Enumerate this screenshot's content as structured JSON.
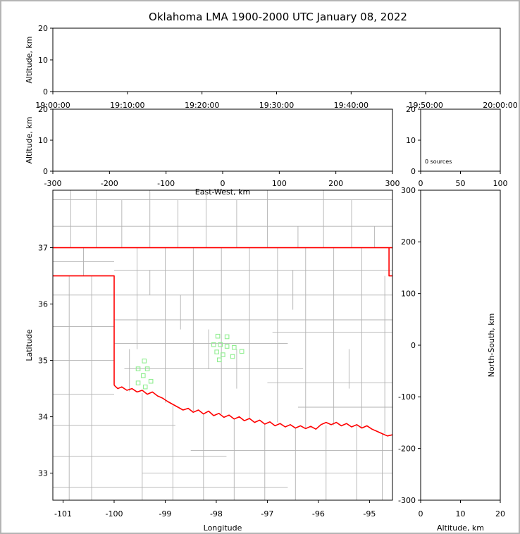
{
  "colors": {
    "axis": "#000000",
    "county": "#b2b2b2",
    "state_border": "#ff0000",
    "station": "#90EE90",
    "background": "#ffffff",
    "frame": "#b4b4b4"
  },
  "chart_data": {
    "title": "Oklahoma LMA 1900-2000 UTC January 08, 2022",
    "type": "lma-composite",
    "panels": [
      {
        "id": "time-altitude",
        "type": "scatter",
        "xlim": [
          0,
          3600
        ],
        "ylim": [
          0,
          20
        ],
        "xticks": [
          {
            "v": 0,
            "label": "19:00:00"
          },
          {
            "v": 600,
            "label": "19:10:00"
          },
          {
            "v": 1200,
            "label": "19:20:00"
          },
          {
            "v": 1800,
            "label": "19:30:00"
          },
          {
            "v": 2400,
            "label": "19:40:00"
          },
          {
            "v": 3000,
            "label": "19:50:00"
          },
          {
            "v": 3600,
            "label": "20:00:00"
          }
        ],
        "yticks": [
          {
            "v": 0,
            "label": "0"
          },
          {
            "v": 10,
            "label": "10"
          },
          {
            "v": 20,
            "label": "20"
          }
        ],
        "ylabel": "Altitude, km",
        "points": []
      },
      {
        "id": "ew-altitude",
        "type": "scatter",
        "xlim": [
          -300,
          300
        ],
        "ylim": [
          0,
          20
        ],
        "xticks": [
          {
            "v": -300,
            "label": "-300"
          },
          {
            "v": -200,
            "label": "-200"
          },
          {
            "v": -100,
            "label": "-100"
          },
          {
            "v": 0,
            "label": "0"
          },
          {
            "v": 100,
            "label": "100"
          },
          {
            "v": 200,
            "label": "200"
          },
          {
            "v": 300,
            "label": "300"
          }
        ],
        "yticks": [
          {
            "v": 0,
            "label": "0"
          },
          {
            "v": 10,
            "label": "10"
          },
          {
            "v": 20,
            "label": "20"
          }
        ],
        "xlabel": "East-West, km",
        "ylabel": "Altitude, km",
        "points": []
      },
      {
        "id": "altitude-histogram",
        "type": "line",
        "xlim": [
          0,
          100
        ],
        "ylim": [
          0,
          20
        ],
        "xticks": [
          {
            "v": 0,
            "label": "0"
          },
          {
            "v": 50,
            "label": "50"
          },
          {
            "v": 100,
            "label": "100"
          }
        ],
        "yticks": [
          {
            "v": 0,
            "label": "0"
          },
          {
            "v": 10,
            "label": "10"
          },
          {
            "v": 20,
            "label": "20"
          }
        ],
        "annotation": "0 sources",
        "points": []
      },
      {
        "id": "plan-view",
        "type": "scatter",
        "xlim": [
          -101.2,
          -94.55
        ],
        "ylim": [
          32.52,
          38.02
        ],
        "xticks": [
          {
            "v": -101,
            "label": "-101"
          },
          {
            "v": -100,
            "label": "-100"
          },
          {
            "v": -99,
            "label": "-99"
          },
          {
            "v": -98,
            "label": "-98"
          },
          {
            "v": -97,
            "label": "-97"
          },
          {
            "v": -96,
            "label": "-96"
          },
          {
            "v": -95,
            "label": "-95"
          }
        ],
        "yticks": [
          {
            "v": 33,
            "label": "33"
          },
          {
            "v": 34,
            "label": "34"
          },
          {
            "v": 35,
            "label": "35"
          },
          {
            "v": 36,
            "label": "36"
          },
          {
            "v": 37,
            "label": "37"
          }
        ],
        "xlabel": "Longitude",
        "ylabel": "Latitude",
        "map": {
          "state_border": [
            [
              [
                -101.2,
                37.0
              ],
              [
                -94.55,
                37.0
              ]
            ],
            [
              [
                -101.2,
                36.5
              ],
              [
                -100.0,
                36.5
              ],
              [
                -100.0,
                34.56
              ]
            ],
            [
              [
                -94.618,
                37.0
              ],
              [
                -94.618,
                36.5
              ],
              [
                -94.55,
                36.5
              ]
            ]
          ],
          "red_river": [
            [
              -100.0,
              34.56
            ],
            [
              -99.93,
              34.5
            ],
            [
              -99.85,
              34.53
            ],
            [
              -99.75,
              34.47
            ],
            [
              -99.65,
              34.5
            ],
            [
              -99.55,
              34.44
            ],
            [
              -99.45,
              34.47
            ],
            [
              -99.35,
              34.4
            ],
            [
              -99.25,
              34.44
            ],
            [
              -99.15,
              34.37
            ],
            [
              -99.05,
              34.33
            ],
            [
              -98.95,
              34.27
            ],
            [
              -98.85,
              34.22
            ],
            [
              -98.75,
              34.17
            ],
            [
              -98.65,
              34.12
            ],
            [
              -98.55,
              34.15
            ],
            [
              -98.45,
              34.08
            ],
            [
              -98.35,
              34.12
            ],
            [
              -98.25,
              34.05
            ],
            [
              -98.15,
              34.1
            ],
            [
              -98.05,
              34.02
            ],
            [
              -97.95,
              34.06
            ],
            [
              -97.85,
              33.99
            ],
            [
              -97.75,
              34.03
            ],
            [
              -97.65,
              33.96
            ],
            [
              -97.55,
              34.0
            ],
            [
              -97.45,
              33.93
            ],
            [
              -97.35,
              33.97
            ],
            [
              -97.25,
              33.9
            ],
            [
              -97.15,
              33.94
            ],
            [
              -97.05,
              33.87
            ],
            [
              -96.95,
              33.91
            ],
            [
              -96.85,
              33.84
            ],
            [
              -96.75,
              33.88
            ],
            [
              -96.65,
              33.82
            ],
            [
              -96.55,
              33.86
            ],
            [
              -96.45,
              33.8
            ],
            [
              -96.35,
              33.84
            ],
            [
              -96.25,
              33.79
            ],
            [
              -96.15,
              33.83
            ],
            [
              -96.05,
              33.78
            ],
            [
              -95.95,
              33.86
            ],
            [
              -95.85,
              33.9
            ],
            [
              -95.75,
              33.86
            ],
            [
              -95.65,
              33.9
            ],
            [
              -95.55,
              33.84
            ],
            [
              -95.45,
              33.88
            ],
            [
              -95.35,
              33.82
            ],
            [
              -95.25,
              33.86
            ],
            [
              -95.15,
              33.8
            ],
            [
              -95.05,
              33.84
            ],
            [
              -94.95,
              33.78
            ],
            [
              -94.85,
              33.74
            ],
            [
              -94.75,
              33.7
            ],
            [
              -94.65,
              33.66
            ],
            [
              -94.55,
              33.68
            ]
          ],
          "counties_v": [
            [
              -100.85,
              37.0,
              38.02
            ],
            [
              -100.35,
              37.0,
              38.02
            ],
            [
              -99.85,
              37.0,
              37.85
            ],
            [
              -99.3,
              37.0,
              38.02
            ],
            [
              -98.75,
              37.0,
              37.85
            ],
            [
              -98.2,
              37.0,
              38.02
            ],
            [
              -97.6,
              37.0,
              37.85
            ],
            [
              -97.0,
              37.0,
              38.02
            ],
            [
              -96.4,
              37.0,
              37.38
            ],
            [
              -95.9,
              37.0,
              38.02
            ],
            [
              -95.35,
              37.0,
              37.85
            ],
            [
              -94.9,
              37.0,
              37.38
            ],
            [
              -100.88,
              32.52,
              36.5
            ],
            [
              -100.44,
              32.52,
              36.5
            ],
            [
              -100.6,
              36.5,
              37.0
            ],
            [
              -99.55,
              35.2,
              37.0
            ],
            [
              -99.3,
              36.16,
              36.6
            ],
            [
              -99.7,
              34.45,
              35.2
            ],
            [
              -99.0,
              34.25,
              37.0
            ],
            [
              -98.7,
              35.55,
              36.16
            ],
            [
              -98.45,
              34.1,
              37.0
            ],
            [
              -98.15,
              34.85,
              35.55
            ],
            [
              -97.9,
              34.05,
              37.0
            ],
            [
              -97.6,
              34.5,
              35.2
            ],
            [
              -97.35,
              33.95,
              37.0
            ],
            [
              -96.8,
              33.9,
              37.0
            ],
            [
              -96.5,
              35.9,
              36.6
            ],
            [
              -96.25,
              33.8,
              37.0
            ],
            [
              -95.7,
              33.85,
              37.0
            ],
            [
              -95.4,
              34.5,
              35.2
            ],
            [
              -95.15,
              33.8,
              37.0
            ],
            [
              -94.7,
              33.7,
              36.5
            ],
            [
              -99.45,
              32.52,
              34.42
            ],
            [
              -98.85,
              32.52,
              34.2
            ],
            [
              -98.25,
              32.52,
              34.05
            ],
            [
              -97.65,
              32.52,
              33.95
            ],
            [
              -97.05,
              32.52,
              33.88
            ],
            [
              -96.45,
              32.52,
              33.8
            ],
            [
              -95.85,
              32.52,
              33.85
            ],
            [
              -95.25,
              32.52,
              33.85
            ],
            [
              -94.75,
              32.52,
              33.7
            ]
          ],
          "counties_h": [
            [
              37.85,
              -101.2,
              -94.55
            ],
            [
              37.38,
              -101.2,
              -94.55
            ],
            [
              36.75,
              -101.2,
              -100.0
            ],
            [
              36.16,
              -101.2,
              -100.0
            ],
            [
              35.6,
              -101.2,
              -100.0
            ],
            [
              35.0,
              -101.2,
              -100.0
            ],
            [
              34.4,
              -101.2,
              -100.0
            ],
            [
              33.85,
              -101.2,
              -98.8
            ],
            [
              33.3,
              -101.2,
              -97.8
            ],
            [
              32.75,
              -101.2,
              -96.6
            ],
            [
              36.6,
              -100.0,
              -94.55
            ],
            [
              36.16,
              -100.0,
              -94.55
            ],
            [
              35.72,
              -100.0,
              -94.55
            ],
            [
              35.3,
              -100.0,
              -96.6
            ],
            [
              34.85,
              -99.8,
              -96.3
            ],
            [
              35.5,
              -96.9,
              -94.55
            ],
            [
              34.6,
              -97.0,
              -94.55
            ],
            [
              34.17,
              -96.4,
              -94.55
            ],
            [
              33.4,
              -98.5,
              -94.55
            ],
            [
              33.0,
              -99.45,
              -94.55
            ]
          ],
          "stations": [
            [
              -99.41,
              34.99
            ],
            [
              -99.53,
              34.85
            ],
            [
              -99.35,
              34.85
            ],
            [
              -99.43,
              34.73
            ],
            [
              -99.28,
              34.63
            ],
            [
              -99.53,
              34.6
            ],
            [
              -99.39,
              34.53
            ],
            [
              -97.97,
              35.43
            ],
            [
              -97.79,
              35.42
            ],
            [
              -98.05,
              35.28
            ],
            [
              -97.92,
              35.28
            ],
            [
              -97.79,
              35.25
            ],
            [
              -97.65,
              35.23
            ],
            [
              -97.99,
              35.15
            ],
            [
              -97.87,
              35.1
            ],
            [
              -97.5,
              35.16
            ],
            [
              -97.94,
              35.01
            ],
            [
              -97.68,
              35.07
            ]
          ]
        }
      },
      {
        "id": "ns-altitude",
        "type": "scatter",
        "xlim": [
          0,
          20
        ],
        "ylim": [
          -300,
          300
        ],
        "xticks": [
          {
            "v": 0,
            "label": "0"
          },
          {
            "v": 10,
            "label": "10"
          },
          {
            "v": 20,
            "label": "20"
          }
        ],
        "yticks": [
          {
            "v": 300,
            "label": "300"
          },
          {
            "v": 200,
            "label": "200"
          },
          {
            "v": 100,
            "label": "100"
          },
          {
            "v": 0,
            "label": "0"
          },
          {
            "v": -100,
            "label": "-100"
          },
          {
            "v": -200,
            "label": "-200"
          },
          {
            "v": -300,
            "label": "-300"
          }
        ],
        "xlabel": "Altitude, km",
        "ylabel": "North-South, km",
        "ylabel_side": "right",
        "points": []
      }
    ]
  }
}
